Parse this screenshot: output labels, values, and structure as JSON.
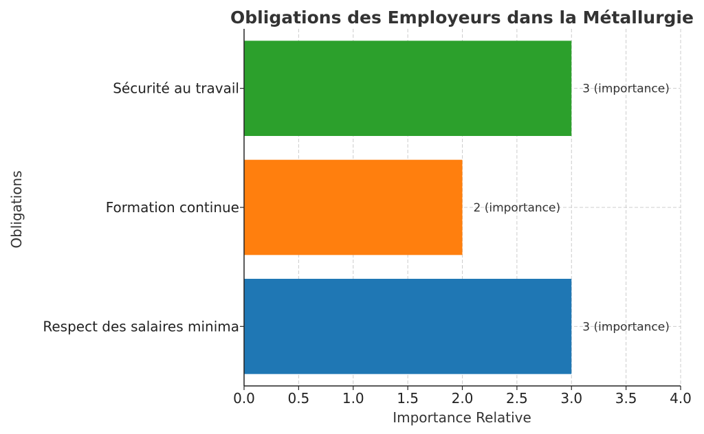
{
  "chart_data": {
    "type": "bar",
    "orientation": "horizontal",
    "title": "Obligations des Employeurs dans la Métallurgie",
    "xlabel": "Importance Relative",
    "ylabel": "Obligations",
    "categories": [
      "Respect des salaires minima",
      "Formation continue",
      "Sécurité au travail"
    ],
    "values": [
      3,
      2,
      3
    ],
    "data_labels": [
      "3 (importance)",
      "2 (importance)",
      "3 (importance)"
    ],
    "colors": [
      "#1f77b4",
      "#ff7f0e",
      "#2ca02c"
    ],
    "xlim": [
      0,
      4
    ],
    "xticks": [
      "0.0",
      "0.5",
      "1.0",
      "1.5",
      "2.0",
      "2.5",
      "3.0",
      "3.5",
      "4.0"
    ],
    "grid": true
  }
}
